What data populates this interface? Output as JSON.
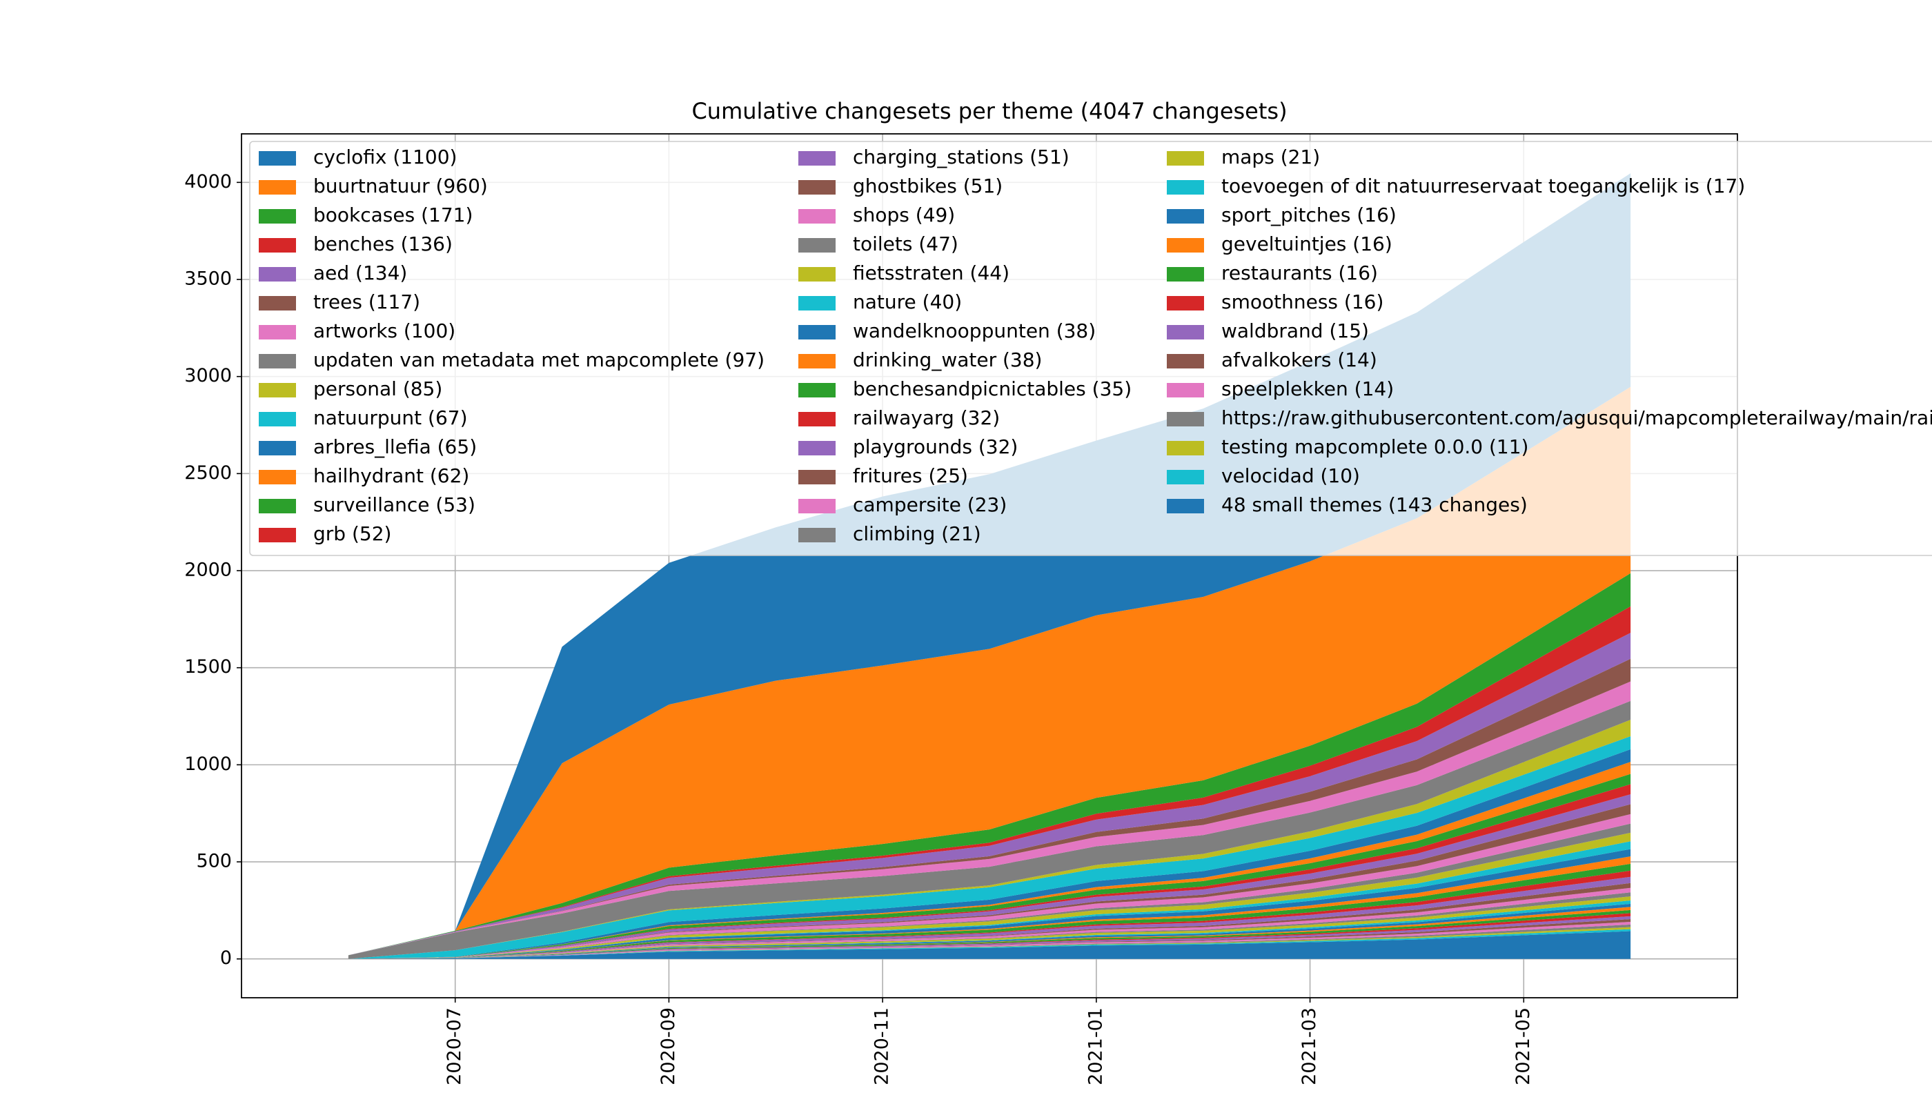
{
  "chart_data": {
    "type": "stacked_area",
    "title": "Cumulative changesets per theme (4047 changesets)",
    "x": [
      "2020-06",
      "2020-07",
      "2020-08",
      "2020-09",
      "2020-10",
      "2020-11",
      "2020-12",
      "2021-01",
      "2021-02",
      "2021-03",
      "2021-04",
      "2021-05",
      "2021-06"
    ],
    "xlim": [
      "2020-05",
      "2021-07"
    ],
    "xticks": [
      "2020-07",
      "2020-09",
      "2020-11",
      "2021-01",
      "2021-03",
      "2021-05"
    ],
    "ylim": [
      -200,
      4250
    ],
    "yticks": [
      0,
      500,
      1000,
      1500,
      2000,
      2500,
      3000,
      3500,
      4000
    ],
    "grid": true,
    "legend": "upper left",
    "series": [
      {
        "name": "cyclofix (1100)",
        "color": "#1f77b4",
        "values": [
          0,
          0,
          600,
          730,
          790,
          870,
          900,
          900,
          970,
          1030,
          1060,
          1085,
          1100
        ]
      },
      {
        "name": "buurtnatuur (960)",
        "color": "#ff7f0e",
        "values": [
          0,
          0,
          720,
          840,
          900,
          920,
          930,
          940,
          945,
          950,
          955,
          958,
          960
        ]
      },
      {
        "name": "bookcases (171)",
        "color": "#2ca02c",
        "values": [
          0,
          3,
          21,
          44,
          53,
          60,
          68,
          82,
          89,
          103,
          120,
          145,
          171
        ]
      },
      {
        "name": "benches (136)",
        "color": "#d62728",
        "values": [
          0,
          0,
          3,
          8,
          10,
          12,
          16,
          30,
          38,
          54,
          73,
          105,
          136
        ]
      },
      {
        "name": "aed (134)",
        "color": "#9467bd",
        "values": [
          0,
          3,
          16,
          35,
          42,
          47,
          54,
          64,
          70,
          80,
          94,
          114,
          134
        ]
      },
      {
        "name": "trees (117)",
        "color": "#8c564b",
        "values": [
          0,
          0,
          2,
          7,
          8,
          11,
          14,
          26,
          33,
          47,
          63,
          90,
          117
        ]
      },
      {
        "name": "artworks (100)",
        "color": "#e377c2",
        "values": [
          0,
          2,
          12,
          26,
          31,
          35,
          40,
          48,
          52,
          60,
          70,
          85,
          100
        ]
      },
      {
        "name": "updaten van metadata met mapcomplete (97)",
        "color": "#7f7f7f",
        "values": [
          19,
          92,
          94,
          95,
          95,
          96,
          96,
          96,
          97,
          97,
          97,
          97,
          97
        ]
      },
      {
        "name": "personal (85)",
        "color": "#bcbd22",
        "values": [
          0,
          0,
          2,
          5,
          6,
          8,
          10,
          19,
          24,
          34,
          46,
          65,
          85
        ]
      },
      {
        "name": "natuurpunt (67)",
        "color": "#17becf",
        "values": [
          0,
          34,
          54,
          60,
          62,
          63,
          64,
          64,
          65,
          66,
          66,
          67,
          67
        ]
      },
      {
        "name": "arbres_llefia (65)",
        "color": "#1f77b4",
        "values": [
          0,
          1,
          8,
          17,
          20,
          23,
          26,
          31,
          34,
          39,
          46,
          55,
          65
        ]
      },
      {
        "name": "hailhydrant (62)",
        "color": "#ff7f0e",
        "values": [
          0,
          0,
          1,
          4,
          4,
          6,
          7,
          14,
          17,
          25,
          33,
          48,
          62
        ]
      },
      {
        "name": "surveillance (53)",
        "color": "#2ca02c",
        "values": [
          0,
          1,
          6,
          14,
          16,
          19,
          21,
          25,
          28,
          32,
          37,
          45,
          53
        ]
      },
      {
        "name": "grb (52)",
        "color": "#d62728",
        "values": [
          0,
          0,
          1,
          3,
          4,
          5,
          6,
          11,
          15,
          21,
          28,
          40,
          52
        ]
      },
      {
        "name": "charging_stations (51)",
        "color": "#9467bd",
        "values": [
          0,
          1,
          6,
          13,
          16,
          18,
          20,
          24,
          27,
          31,
          36,
          43,
          51
        ]
      },
      {
        "name": "ghostbikes (51)",
        "color": "#8c564b",
        "values": [
          0,
          0,
          1,
          3,
          4,
          5,
          6,
          11,
          14,
          20,
          28,
          39,
          51
        ]
      },
      {
        "name": "shops (49)",
        "color": "#e377c2",
        "values": [
          0,
          1,
          6,
          13,
          15,
          17,
          20,
          24,
          25,
          29,
          34,
          42,
          49
        ]
      },
      {
        "name": "toilets (47)",
        "color": "#7f7f7f",
        "values": [
          0,
          0,
          1,
          3,
          3,
          4,
          6,
          10,
          13,
          19,
          25,
          36,
          47
        ]
      },
      {
        "name": "fietsstraten (44)",
        "color": "#bcbd22",
        "values": [
          0,
          1,
          5,
          11,
          14,
          15,
          18,
          21,
          23,
          26,
          31,
          37,
          44
        ]
      },
      {
        "name": "nature (40)",
        "color": "#17becf",
        "values": [
          0,
          0,
          1,
          2,
          3,
          4,
          5,
          9,
          11,
          16,
          22,
          31,
          40
        ]
      },
      {
        "name": "wandelknooppunten (38)",
        "color": "#1f77b4",
        "values": [
          0,
          1,
          5,
          10,
          12,
          13,
          15,
          18,
          20,
          23,
          27,
          32,
          38
        ]
      },
      {
        "name": "drinking_water (38)",
        "color": "#ff7f0e",
        "values": [
          0,
          0,
          1,
          2,
          3,
          3,
          5,
          8,
          11,
          15,
          21,
          29,
          38
        ]
      },
      {
        "name": "benchesandpicnictables (35)",
        "color": "#2ca02c",
        "values": [
          0,
          1,
          4,
          9,
          11,
          12,
          14,
          17,
          18,
          21,
          25,
          30,
          35
        ]
      },
      {
        "name": "railwayarg (32)",
        "color": "#d62728",
        "values": [
          0,
          0,
          1,
          2,
          2,
          3,
          4,
          7,
          9,
          13,
          17,
          25,
          32
        ]
      },
      {
        "name": "playgrounds (32)",
        "color": "#9467bd",
        "values": [
          0,
          1,
          4,
          8,
          10,
          11,
          13,
          15,
          17,
          19,
          22,
          27,
          32
        ]
      },
      {
        "name": "fritures (25)",
        "color": "#8c564b",
        "values": [
          0,
          0,
          1,
          2,
          2,
          2,
          3,
          6,
          7,
          10,
          14,
          19,
          25
        ]
      },
      {
        "name": "campersite (23)",
        "color": "#e377c2",
        "values": [
          0,
          0,
          3,
          6,
          7,
          8,
          9,
          11,
          12,
          14,
          16,
          20,
          23
        ]
      },
      {
        "name": "climbing (21)",
        "color": "#7f7f7f",
        "values": [
          0,
          0,
          0,
          1,
          1,
          2,
          3,
          5,
          6,
          8,
          11,
          16,
          21
        ]
      },
      {
        "name": "maps (21)",
        "color": "#bcbd22",
        "values": [
          0,
          0,
          3,
          5,
          7,
          7,
          8,
          10,
          11,
          13,
          15,
          18,
          21
        ]
      },
      {
        "name": "toevoegen of dit natuurreservaat toegangkelijk is (17)",
        "color": "#17becf",
        "values": [
          0,
          0,
          0,
          1,
          1,
          2,
          2,
          4,
          5,
          7,
          9,
          13,
          17
        ]
      },
      {
        "name": "sport_pitches (16)",
        "color": "#1f77b4",
        "values": [
          0,
          0,
          2,
          4,
          5,
          6,
          6,
          8,
          8,
          10,
          11,
          14,
          16
        ]
      },
      {
        "name": "geveltuintjes (16)",
        "color": "#ff7f0e",
        "values": [
          0,
          0,
          0,
          1,
          1,
          1,
          2,
          4,
          4,
          6,
          9,
          12,
          16
        ]
      },
      {
        "name": "restaurants (16)",
        "color": "#2ca02c",
        "values": [
          0,
          0,
          2,
          4,
          5,
          6,
          6,
          8,
          8,
          10,
          11,
          14,
          16
        ]
      },
      {
        "name": "smoothness (16)",
        "color": "#d62728",
        "values": [
          0,
          0,
          0,
          1,
          1,
          1,
          2,
          4,
          4,
          6,
          9,
          12,
          16
        ]
      },
      {
        "name": "waldbrand (15)",
        "color": "#9467bd",
        "values": [
          0,
          0,
          2,
          4,
          5,
          5,
          6,
          7,
          8,
          9,
          11,
          13,
          15
        ]
      },
      {
        "name": "afvalkokers (14)",
        "color": "#8c564b",
        "values": [
          0,
          0,
          0,
          1,
          1,
          1,
          2,
          3,
          4,
          6,
          8,
          11,
          14
        ]
      },
      {
        "name": "speelplekken (14)",
        "color": "#e377c2",
        "values": [
          0,
          0,
          2,
          4,
          4,
          5,
          6,
          7,
          7,
          8,
          10,
          12,
          14
        ]
      },
      {
        "name": "https://raw.githubusercontent.com/agusqui/mapcompleterailway/main/rai",
        "color": "#7f7f7f",
        "values": [
          0,
          0,
          0,
          1,
          1,
          1,
          2,
          3,
          4,
          5,
          7,
          10,
          13
        ]
      },
      {
        "name": "testing mapcomplete 0.0.0 (11)",
        "color": "#bcbd22",
        "values": [
          0,
          0,
          0,
          1,
          1,
          1,
          1,
          2,
          3,
          4,
          6,
          8,
          11
        ]
      },
      {
        "name": "velocidad (10)",
        "color": "#17becf",
        "values": [
          0,
          0,
          1,
          3,
          3,
          4,
          4,
          5,
          5,
          6,
          7,
          9,
          10
        ]
      },
      {
        "name": "48 small themes (143 changes)",
        "color": "#1f77b4",
        "values": [
          0,
          3,
          17,
          37,
          44,
          50,
          57,
          69,
          74,
          86,
          100,
          122,
          143
        ]
      }
    ]
  }
}
